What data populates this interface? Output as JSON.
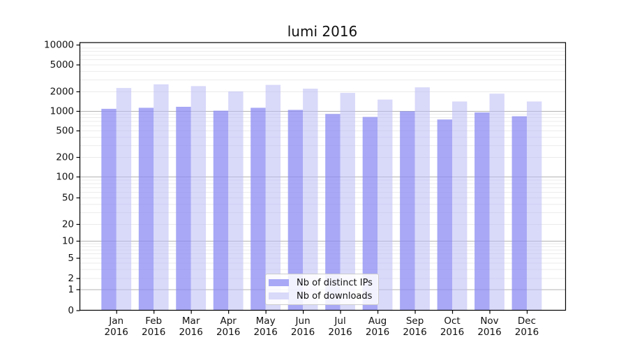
{
  "chart_data": {
    "type": "bar",
    "title": "lumi 2016",
    "categories": [
      "Jan 2016",
      "Feb 2016",
      "Mar 2016",
      "Apr 2016",
      "May 2016",
      "Jun 2016",
      "Jul 2016",
      "Aug 2016",
      "Sep 2016",
      "Oct 2016",
      "Nov 2016",
      "Dec 2016"
    ],
    "series": [
      {
        "name": "Nb of distinct IPs",
        "color": "#a8a8f6",
        "values": [
          1080,
          1120,
          1160,
          1010,
          1120,
          1040,
          900,
          810,
          990,
          740,
          950,
          830
        ]
      },
      {
        "name": "Nb of downloads",
        "color": "#d9d9fa",
        "values": [
          2250,
          2550,
          2400,
          2000,
          2500,
          2200,
          1900,
          1500,
          2300,
          1400,
          1850,
          1400
        ]
      }
    ],
    "xlabel": "",
    "ylabel": "",
    "yscale": "symlog",
    "ylim": [
      0,
      10000
    ],
    "yticks": [
      0,
      1,
      2,
      5,
      10,
      20,
      50,
      100,
      200,
      500,
      1000,
      2000,
      5000,
      10000
    ],
    "grid": true,
    "legend_position": "lower center"
  },
  "colors": {
    "bar_ips": "#a8a8f6",
    "bar_ips_rgba": "rgba(139,139,243,0.75)",
    "bar_downloads": "#d9d9fa",
    "bar_downloads_rgba": "rgba(186,186,246,0.55)",
    "major_grid": "#b3b3b3",
    "minor_grid": "#ebebeb",
    "axis": "#000000",
    "text": "#111111",
    "legend_border": "#cccccc",
    "legend_bg": "rgba(255,255,255,0.85)"
  }
}
